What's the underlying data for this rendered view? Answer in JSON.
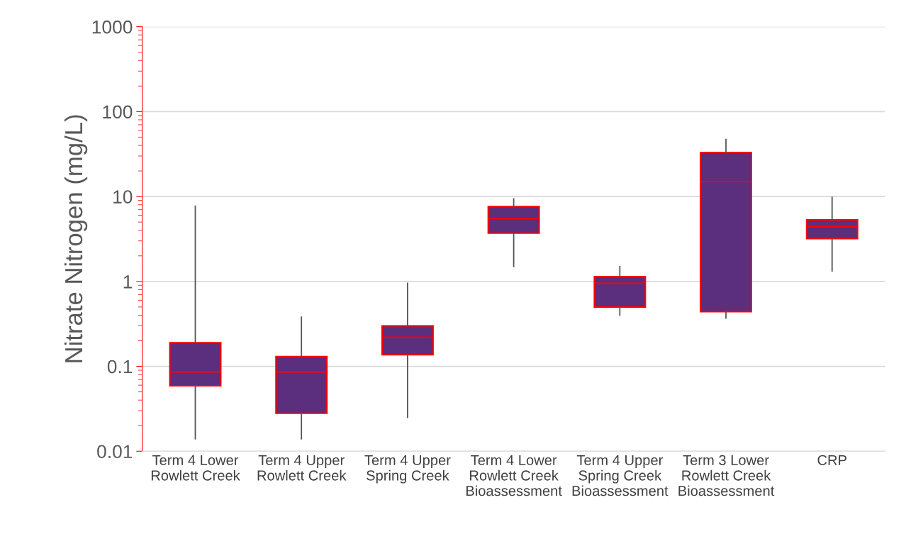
{
  "chart_data": {
    "type": "box",
    "ylabel": "Nitrate Nitrogen (mg/L)",
    "log": "y",
    "grid": "y",
    "color": "#5b2e7e",
    "categories": [
      "Term 4 Lower\nRowlett Creek",
      "Term 4 Upper\nRowlett Creek",
      "Term 4 Upper\nSpring Creek",
      "Term 4 Lower\nRowlett Creek\nBioassessment",
      "Term 4 Upper\nSpring Creek\nBioassessment",
      "Term 3 Lower\nRowlett Creek\nBioassessment",
      "CRP"
    ],
    "boxes": [
      {
        "low": 0.014,
        "q1": 0.059,
        "median": 0.086,
        "q3": 0.19,
        "high": 7.7
      },
      {
        "low": 0.014,
        "q1": 0.028,
        "median": 0.086,
        "q3": 0.13,
        "high": 0.38
      },
      {
        "low": 0.025,
        "q1": 0.137,
        "median": 0.22,
        "q3": 0.3,
        "high": 0.95
      },
      {
        "low": 1.5,
        "q1": 3.7,
        "median": 5.5,
        "q3": 7.6,
        "high": 9.4
      },
      {
        "low": 0.4,
        "q1": 0.5,
        "median": 0.95,
        "q3": 1.14,
        "high": 1.5
      },
      {
        "low": 0.37,
        "q1": 0.44,
        "median": 15,
        "q3": 33,
        "high": 47
      },
      {
        "low": 1.33,
        "q1": 3.2,
        "median": 4.4,
        "q3": 5.3,
        "high": 9.8
      }
    ],
    "ylim": [
      0.01,
      1000
    ],
    "yticks": [
      {
        "value": 0.01,
        "label": "0.01"
      },
      {
        "value": 0.1,
        "label": "0.1"
      },
      1,
      10,
      100,
      1000
    ]
  }
}
